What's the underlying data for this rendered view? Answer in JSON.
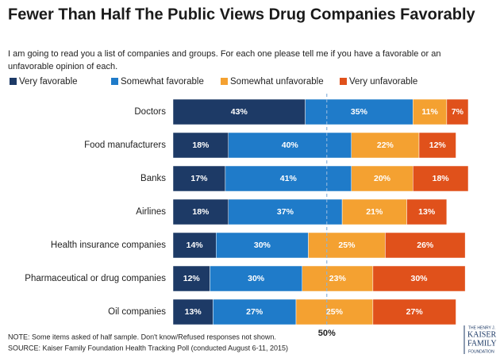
{
  "chart_data": {
    "type": "bar",
    "orientation": "horizontal",
    "stacked": true,
    "title": "Fewer Than Half The Public Views Drug Companies Favorably",
    "subtitle": [
      "I am going to read you a list of companies and groups.  For each one please tell me if you have a favorable or an",
      "unfavorable opinion of each."
    ],
    "categories": [
      "Doctors",
      "Food manufacturers",
      "Banks",
      "Airlines",
      "Health insurance companies",
      "Pharmaceutical or drug companies",
      "Oil companies"
    ],
    "series": [
      {
        "name": "Very favorable",
        "color": "#1d3a66",
        "values": [
          43,
          18,
          17,
          18,
          14,
          12,
          13
        ],
        "value_labels": [
          "43%",
          "18%",
          "17%",
          "18%",
          "14%",
          "12%",
          "13%"
        ]
      },
      {
        "name": "Somewhat favorable",
        "color": "#1f7bc9",
        "values": [
          35,
          40,
          41,
          37,
          30,
          30,
          27
        ],
        "value_labels": [
          "35%",
          "40%",
          "41%",
          "37%",
          "30%",
          "30%",
          "27%"
        ]
      },
      {
        "name": "Somewhat unfavorable",
        "color": "#f4a131",
        "values": [
          11,
          22,
          20,
          21,
          25,
          23,
          25
        ],
        "value_labels": [
          "11%",
          "22%",
          "20%",
          "21%",
          "25%",
          "23%",
          "25%"
        ]
      },
      {
        "name": "Very unfavorable",
        "color": "#e0511b",
        "values": [
          7,
          12,
          18,
          13,
          26,
          30,
          27
        ],
        "value_labels": [
          "7%",
          "12%",
          "18%",
          "13%",
          "26%",
          "30%",
          "27%"
        ]
      }
    ],
    "xlim": [
      0,
      100
    ],
    "reference_line": {
      "value": 50,
      "label": "50%"
    },
    "notes": [
      "NOTE: Some items asked of half sample. Don't know/Refused responses not shown.",
      "SOURCE: Kaiser Family Foundation Health Tracking Poll (conducted August 6-11, 2015)"
    ],
    "logo": [
      "THE HENRY J.",
      "KAISER",
      "FAMILY",
      "FOUNDATION"
    ]
  }
}
